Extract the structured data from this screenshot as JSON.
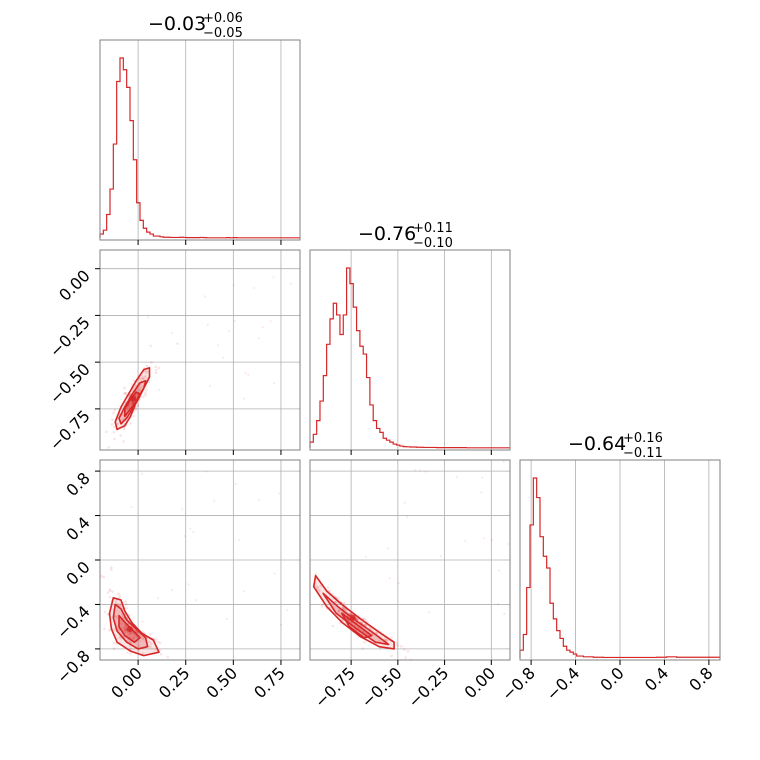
{
  "chart_data": {
    "type": "corner",
    "parameters": [
      {
        "title": {
          "median": "−0.03",
          "plus": "+0.06",
          "minus": "−0.05"
        },
        "range": [
          -0.2,
          0.85
        ],
        "ticks": [
          0.0,
          0.25,
          0.5,
          0.75
        ],
        "tick_labels": [
          "0.00",
          "0.25",
          "0.50",
          "0.75"
        ]
      },
      {
        "title": {
          "median": "−0.76",
          "plus": "+0.11",
          "minus": "−0.10"
        },
        "range": [
          -0.97,
          0.1
        ],
        "ticks": [
          -0.75,
          -0.5,
          -0.25,
          0.0
        ],
        "tick_labels": [
          "−0.75",
          "−0.50",
          "−0.25",
          "0.00"
        ]
      },
      {
        "title": {
          "median": "−0.64",
          "plus": "+0.16",
          "minus": "−0.11"
        },
        "range": [
          -0.9,
          0.9
        ],
        "ticks": [
          -0.8,
          -0.4,
          0.0,
          0.4,
          0.8
        ],
        "tick_labels": [
          "−0.8",
          "−0.4",
          "0.0",
          "0.4",
          "0.8"
        ]
      }
    ],
    "histograms": [
      {
        "param": 0,
        "start": -0.2,
        "step": 0.0175,
        "values": [
          2,
          4,
          12,
          25,
          48,
          80,
          92,
          86,
          77,
          60,
          40,
          18,
          9,
          5,
          3,
          2,
          1,
          1,
          0.6,
          0.4,
          0.4,
          0.3,
          0.3,
          0.3,
          0.4,
          0.3,
          0.2,
          0.2,
          0.2,
          0.2,
          0.3,
          0.2,
          0.1,
          0.1,
          0.1,
          0.1,
          0.1,
          0.1,
          0.2,
          0.1,
          0.2,
          0.1,
          0.1,
          0.1,
          0.1,
          0.1,
          0.1,
          0.1,
          0.1,
          0.1,
          0.1,
          0.1,
          0.1,
          0.1,
          0.1,
          0.1,
          0.1,
          0.1,
          0.1,
          0.1
        ]
      },
      {
        "param": 1,
        "start": -0.97,
        "step": 0.0178,
        "values": [
          3,
          7,
          14,
          24,
          37,
          53,
          66,
          74,
          68,
          58,
          68,
          92,
          84,
          72,
          60,
          52,
          48,
          36,
          22,
          14,
          10,
          8,
          5,
          4,
          3,
          2,
          1.5,
          1,
          0.7,
          0.6,
          0.5,
          0.5,
          0.4,
          0.4,
          0.3,
          0.3,
          0.3,
          0.3,
          0.2,
          0.2,
          0.2,
          0.2,
          0.2,
          0.2,
          0.2,
          0.2,
          0.2,
          0.1,
          0.1,
          0.1,
          0.1,
          0.1,
          0.1,
          0.1,
          0.1,
          0.1,
          0.1,
          0.1,
          0.1,
          0.1
        ]
      },
      {
        "param": 2,
        "start": -0.9,
        "step": 0.03,
        "values": [
          4,
          12,
          36,
          68,
          92,
          82,
          62,
          52,
          46,
          28,
          20,
          14,
          10,
          6,
          4,
          3,
          2,
          1,
          1,
          0.6,
          0.6,
          0.6,
          0.4,
          0.4,
          0.4,
          0.3,
          0.3,
          0.3,
          0.3,
          0.3,
          0.3,
          0.3,
          0.3,
          0.3,
          0.3,
          0.3,
          0.3,
          0.3,
          0.3,
          0.3,
          0.3,
          0.4,
          0.4,
          0.4,
          0.6,
          0.6,
          0.6,
          0.4,
          0.4,
          0.4,
          0.4,
          0.4,
          0.4,
          0.4,
          0.4,
          0.4,
          0.4,
          0.4,
          0.4,
          0.4
        ]
      }
    ],
    "pairs": [
      {
        "x": 0,
        "y": 1,
        "contours": [
          [
            [
              -0.11,
              -0.86
            ],
            [
              -0.07,
              -0.84
            ],
            [
              -0.04,
              -0.79
            ],
            [
              -0.02,
              -0.74
            ],
            [
              0.0,
              -0.69
            ],
            [
              0.03,
              -0.64
            ],
            [
              0.06,
              -0.58
            ],
            [
              0.06,
              -0.53
            ],
            [
              0.03,
              -0.54
            ],
            [
              -0.01,
              -0.6
            ],
            [
              -0.05,
              -0.67
            ],
            [
              -0.09,
              -0.74
            ],
            [
              -0.12,
              -0.82
            ]
          ],
          [
            [
              -0.09,
              -0.83
            ],
            [
              -0.06,
              -0.8
            ],
            [
              -0.03,
              -0.75
            ],
            [
              0.0,
              -0.7
            ],
            [
              0.03,
              -0.64
            ],
            [
              0.04,
              -0.6
            ],
            [
              0.01,
              -0.61
            ],
            [
              -0.03,
              -0.67
            ],
            [
              -0.07,
              -0.74
            ],
            [
              -0.1,
              -0.8
            ]
          ],
          [
            [
              -0.07,
              -0.79
            ],
            [
              -0.04,
              -0.75
            ],
            [
              -0.01,
              -0.71
            ],
            [
              0.01,
              -0.67
            ],
            [
              -0.01,
              -0.66
            ],
            [
              -0.04,
              -0.7
            ],
            [
              -0.07,
              -0.75
            ]
          ]
        ]
      },
      {
        "x": 0,
        "y": 2,
        "contours": [
          [
            [
              -0.13,
              -0.34
            ],
            [
              -0.09,
              -0.36
            ],
            [
              -0.07,
              -0.46
            ],
            [
              -0.03,
              -0.57
            ],
            [
              0.02,
              -0.66
            ],
            [
              0.08,
              -0.72
            ],
            [
              0.11,
              -0.83
            ],
            [
              0.03,
              -0.86
            ],
            [
              -0.04,
              -0.82
            ],
            [
              -0.11,
              -0.74
            ],
            [
              -0.14,
              -0.62
            ],
            [
              -0.15,
              -0.48
            ]
          ],
          [
            [
              -0.12,
              -0.4
            ],
            [
              -0.09,
              -0.44
            ],
            [
              -0.06,
              -0.54
            ],
            [
              -0.01,
              -0.62
            ],
            [
              0.04,
              -0.7
            ],
            [
              0.05,
              -0.78
            ],
            [
              0.0,
              -0.8
            ],
            [
              -0.06,
              -0.74
            ],
            [
              -0.11,
              -0.64
            ],
            [
              -0.13,
              -0.52
            ]
          ],
          [
            [
              -0.1,
              -0.5
            ],
            [
              -0.07,
              -0.56
            ],
            [
              -0.03,
              -0.63
            ],
            [
              0.01,
              -0.7
            ],
            [
              -0.02,
              -0.74
            ],
            [
              -0.07,
              -0.68
            ],
            [
              -0.1,
              -0.6
            ]
          ]
        ]
      },
      {
        "x": 1,
        "y": 2,
        "contours": [
          [
            [
              -0.94,
              -0.14
            ],
            [
              -0.88,
              -0.28
            ],
            [
              -0.8,
              -0.4
            ],
            [
              -0.7,
              -0.53
            ],
            [
              -0.6,
              -0.65
            ],
            [
              -0.52,
              -0.74
            ],
            [
              -0.52,
              -0.8
            ],
            [
              -0.6,
              -0.78
            ],
            [
              -0.7,
              -0.69
            ],
            [
              -0.8,
              -0.56
            ],
            [
              -0.88,
              -0.42
            ],
            [
              -0.95,
              -0.24
            ]
          ],
          [
            [
              -0.9,
              -0.3
            ],
            [
              -0.82,
              -0.42
            ],
            [
              -0.72,
              -0.55
            ],
            [
              -0.62,
              -0.67
            ],
            [
              -0.55,
              -0.76
            ],
            [
              -0.62,
              -0.74
            ],
            [
              -0.72,
              -0.62
            ],
            [
              -0.83,
              -0.48
            ]
          ],
          [
            [
              -0.8,
              -0.48
            ],
            [
              -0.72,
              -0.58
            ],
            [
              -0.64,
              -0.68
            ],
            [
              -0.68,
              -0.7
            ],
            [
              -0.76,
              -0.6
            ]
          ]
        ]
      }
    ],
    "color": "#d62728",
    "grid": true
  }
}
